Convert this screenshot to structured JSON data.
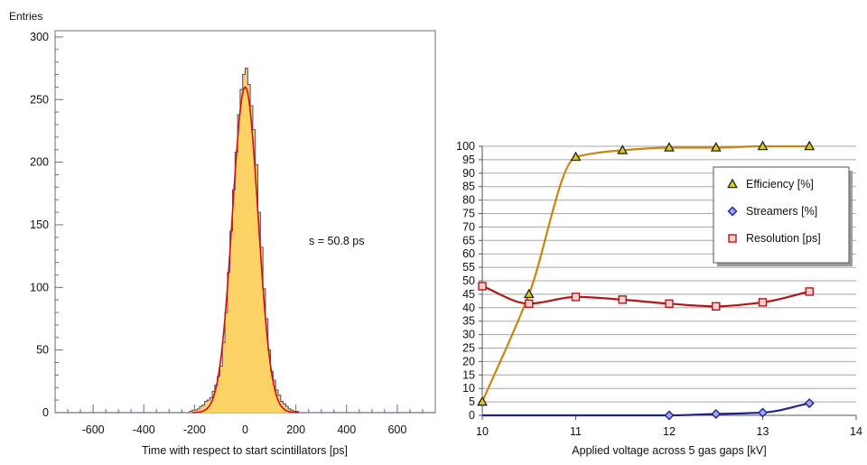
{
  "chart_data": [
    {
      "type": "histogram",
      "ylabel": "Entries",
      "xlabel": "Time with respect to start scintillators [ps]",
      "annotation": "s = 50.8 ps",
      "xlim": [
        -750,
        750
      ],
      "ylim": [
        0,
        305
      ],
      "xticks": [
        "-600",
        "-400",
        "-200",
        "0",
        "200",
        "400",
        "600"
      ],
      "yticks": [
        "0",
        "50",
        "100",
        "150",
        "200",
        "250",
        "300"
      ],
      "bin_width": 10,
      "bin_centers": [
        -215,
        -205,
        -195,
        -185,
        -175,
        -165,
        -155,
        -145,
        -135,
        -125,
        -115,
        -105,
        -95,
        -85,
        -75,
        -65,
        -55,
        -45,
        -35,
        -25,
        -15,
        -5,
        5,
        15,
        25,
        35,
        45,
        55,
        65,
        75,
        85,
        95,
        105,
        115,
        125,
        135,
        145,
        155,
        165,
        175,
        185,
        195,
        205
      ],
      "counts": [
        1,
        2,
        2,
        3,
        5,
        6,
        9,
        10,
        12,
        17,
        22,
        29,
        37,
        56,
        80,
        112,
        145,
        178,
        208,
        238,
        258,
        270,
        275,
        262,
        245,
        226,
        198,
        160,
        132,
        99,
        75,
        50,
        33,
        26,
        18,
        14,
        9,
        7,
        5,
        3,
        2,
        1,
        1
      ],
      "fit": {
        "type": "gaussian",
        "mean": 0,
        "sigma": 50.8,
        "amplitude": 260
      },
      "fill_color": "#fcd265",
      "fit_color": "#cc1111"
    },
    {
      "type": "line",
      "xlabel": "Applied voltage across 5 gas gaps [kV]",
      "xlim": [
        10,
        14
      ],
      "ylim": [
        0,
        100
      ],
      "xticks": [
        "10",
        "11",
        "12",
        "13",
        "14"
      ],
      "yticks": [
        "0",
        "5",
        "10",
        "15",
        "20",
        "25",
        "30",
        "35",
        "40",
        "45",
        "50",
        "55",
        "60",
        "65",
        "70",
        "75",
        "80",
        "85",
        "90",
        "95",
        "100"
      ],
      "grid": true,
      "legend_position": "top-right",
      "series": [
        {
          "name": "Efficiency [%]",
          "marker": "triangle",
          "color": "#c8860f",
          "marker_fill": "#d6cc1a",
          "x": [
            10,
            10.5,
            11,
            11.5,
            12,
            12.5,
            13,
            13.5
          ],
          "y": [
            5,
            45,
            96,
            98.5,
            99.5,
            99.5,
            100,
            100
          ]
        },
        {
          "name": "Streamers [%]",
          "marker": "diamond",
          "color": "#22228a",
          "marker_fill": "#9aa8ff",
          "x": [
            12,
            12.5,
            13,
            13.5
          ],
          "y": [
            0,
            0.5,
            1,
            4.5
          ]
        },
        {
          "name": "Resolution [ps]",
          "marker": "square",
          "color": "#b01818",
          "marker_fill": "#ffd0d0",
          "x": [
            10,
            10.5,
            11,
            11.5,
            12,
            12.5,
            13,
            13.5
          ],
          "y": [
            48,
            41.5,
            44,
            43,
            41.5,
            40.5,
            42,
            46
          ]
        }
      ]
    }
  ]
}
